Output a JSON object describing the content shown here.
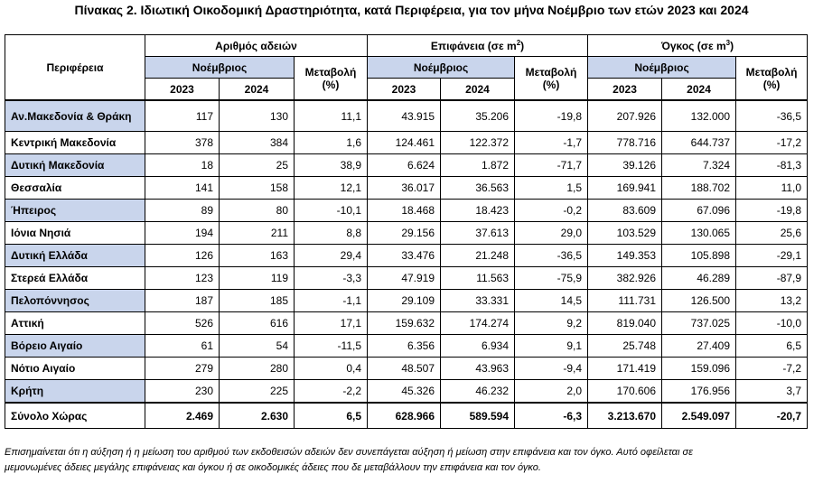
{
  "title": "Πίνακας 2. Ιδιωτική Οικοδομική Δραστηριότητα, κατά  Περιφέρεια, για τον μήνα Νοέμβριο των ετών 2023 και 2024",
  "headers": {
    "region": "Περιφέρεια",
    "permits": "Αριθμός αδειών",
    "area": "Επιφάνεια (σε m",
    "area_sup": "2",
    "area_close": ")",
    "volume": "Όγκος (σε m",
    "volume_sup": "3",
    "volume_close": ")",
    "month": "Νοέμβριος",
    "change_line1": "Μεταβολή",
    "change_line2": "(%)",
    "y2023": "2023",
    "y2024": "2024"
  },
  "rows": [
    {
      "region": "Αν.Μακεδονία & Θράκη",
      "p23": "117",
      "p24": "130",
      "pc": "11,1",
      "a23": "43.915",
      "a24": "35.206",
      "ac": "-19,8",
      "v23": "207.926",
      "v24": "132.000",
      "vc": "-36,5"
    },
    {
      "region": "Κεντρική Μακεδονία",
      "p23": "378",
      "p24": "384",
      "pc": "1,6",
      "a23": "124.461",
      "a24": "122.372",
      "ac": "-1,7",
      "v23": "778.716",
      "v24": "644.737",
      "vc": "-17,2"
    },
    {
      "region": "Δυτική Μακεδονία",
      "p23": "18",
      "p24": "25",
      "pc": "38,9",
      "a23": "6.624",
      "a24": "1.872",
      "ac": "-71,7",
      "v23": "39.126",
      "v24": "7.324",
      "vc": "-81,3"
    },
    {
      "region": "Θεσσαλία",
      "p23": "141",
      "p24": "158",
      "pc": "12,1",
      "a23": "36.017",
      "a24": "36.563",
      "ac": "1,5",
      "v23": "169.941",
      "v24": "188.702",
      "vc": "11,0"
    },
    {
      "region": "Ήπειρος",
      "p23": "89",
      "p24": "80",
      "pc": "-10,1",
      "a23": "18.468",
      "a24": "18.423",
      "ac": "-0,2",
      "v23": "83.609",
      "v24": "67.096",
      "vc": "-19,8"
    },
    {
      "region": "Ιόνια Νησιά",
      "p23": "194",
      "p24": "211",
      "pc": "8,8",
      "a23": "29.156",
      "a24": "37.613",
      "ac": "29,0",
      "v23": "103.529",
      "v24": "130.065",
      "vc": "25,6"
    },
    {
      "region": "Δυτική Ελλάδα",
      "p23": "126",
      "p24": "163",
      "pc": "29,4",
      "a23": "33.476",
      "a24": "21.248",
      "ac": "-36,5",
      "v23": "149.353",
      "v24": "105.898",
      "vc": "-29,1"
    },
    {
      "region": "Στερεά Ελλάδα",
      "p23": "123",
      "p24": "119",
      "pc": "-3,3",
      "a23": "47.919",
      "a24": "11.563",
      "ac": "-75,9",
      "v23": "382.926",
      "v24": "46.289",
      "vc": "-87,9"
    },
    {
      "region": "Πελοπόννησος",
      "p23": "187",
      "p24": "185",
      "pc": "-1,1",
      "a23": "29.109",
      "a24": "33.331",
      "ac": "14,5",
      "v23": "111.731",
      "v24": "126.500",
      "vc": "13,2"
    },
    {
      "region": "Αττική",
      "p23": "526",
      "p24": "616",
      "pc": "17,1",
      "a23": "159.632",
      "a24": "174.274",
      "ac": "9,2",
      "v23": "819.040",
      "v24": "737.025",
      "vc": "-10,0"
    },
    {
      "region": "Βόρειο Αιγαίο",
      "p23": "61",
      "p24": "54",
      "pc": "-11,5",
      "a23": "6.356",
      "a24": "6.934",
      "ac": "9,1",
      "v23": "25.748",
      "v24": "27.409",
      "vc": "6,5"
    },
    {
      "region": "Νότιο Αιγαίο",
      "p23": "279",
      "p24": "280",
      "pc": "0,4",
      "a23": "48.507",
      "a24": "43.963",
      "ac": "-9,4",
      "v23": "171.419",
      "v24": "159.096",
      "vc": "-7,2"
    },
    {
      "region": "Κρήτη",
      "p23": "230",
      "p24": "225",
      "pc": "-2,2",
      "a23": "45.326",
      "a24": "46.232",
      "ac": "2,0",
      "v23": "170.606",
      "v24": "176.956",
      "vc": "3,7"
    }
  ],
  "total": {
    "region": "Σύνολο Χώρας",
    "p23": "2.469",
    "p24": "2.630",
    "pc": "6,5",
    "a23": "628.966",
    "a24": "589.594",
    "ac": "-6,3",
    "v23": "3.213.670",
    "v24": "2.549.097",
    "vc": "-20,7"
  },
  "note_line1": "Επισημαίνεται ότι η αύξηση ή η μείωση του αριθμού των εκδοθεισών αδειών δεν συνεπάγεται αύξηση ή μείωση στην επιφάνεια και τον όγκο. Αυτό οφείλεται σε",
  "note_line2": "μεμονωμένες άδειες μεγάλης επιφάνειας και όγκου ή σε οικοδομικές άδειες που δε μεταβάλλουν την επιφάνεια και τον όγκο.",
  "colors": {
    "highlight_blue": "#c9d5ec"
  }
}
